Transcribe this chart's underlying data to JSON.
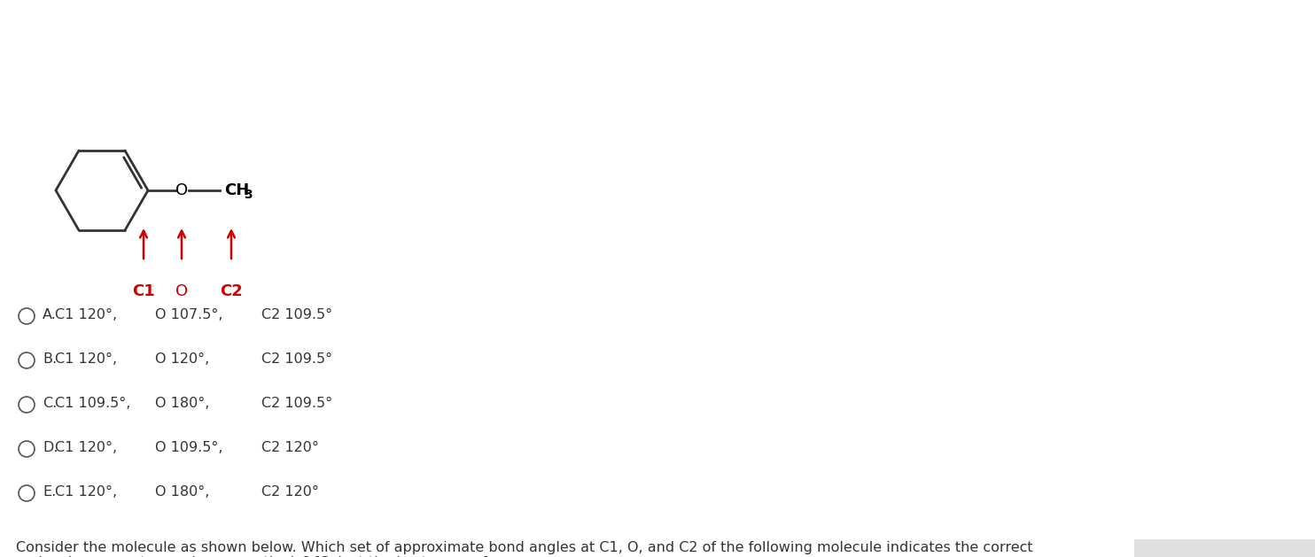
{
  "title_text": "Consider the molecule as shown below. Which set of approximate bond angles at C1, O, and C2 of the following molecule indicates the correct\nmolecular geometry angles respectively? [Select the best answer]",
  "title_fontsize": 11.5,
  "title_color": "#333333",
  "question_options": [
    {
      "label": "A.",
      "part1": "C1 120°,",
      "part2": "O 107.5°,",
      "part3": "C2 109.5°"
    },
    {
      "label": "B.",
      "part1": "C1 120°,",
      "part2": "O 120°,",
      "part3": "C2 109.5°"
    },
    {
      "label": "C.",
      "part1": "C1 109.5°,",
      "part2": "O 180°,",
      "part3": "C2 109.5°"
    },
    {
      "label": "D.",
      "part1": "C1 120°,",
      "part2": "O 109.5°,",
      "part3": "C2 120°"
    },
    {
      "label": "E.",
      "part1": "C1 120°,",
      "part2": "O 180°,",
      "part3": "C2 120°"
    }
  ],
  "background_color": "#ffffff",
  "text_color": "#333333",
  "red_color": "#cc0000",
  "ring_color": "#333333",
  "arrow_color": "#cc0000"
}
